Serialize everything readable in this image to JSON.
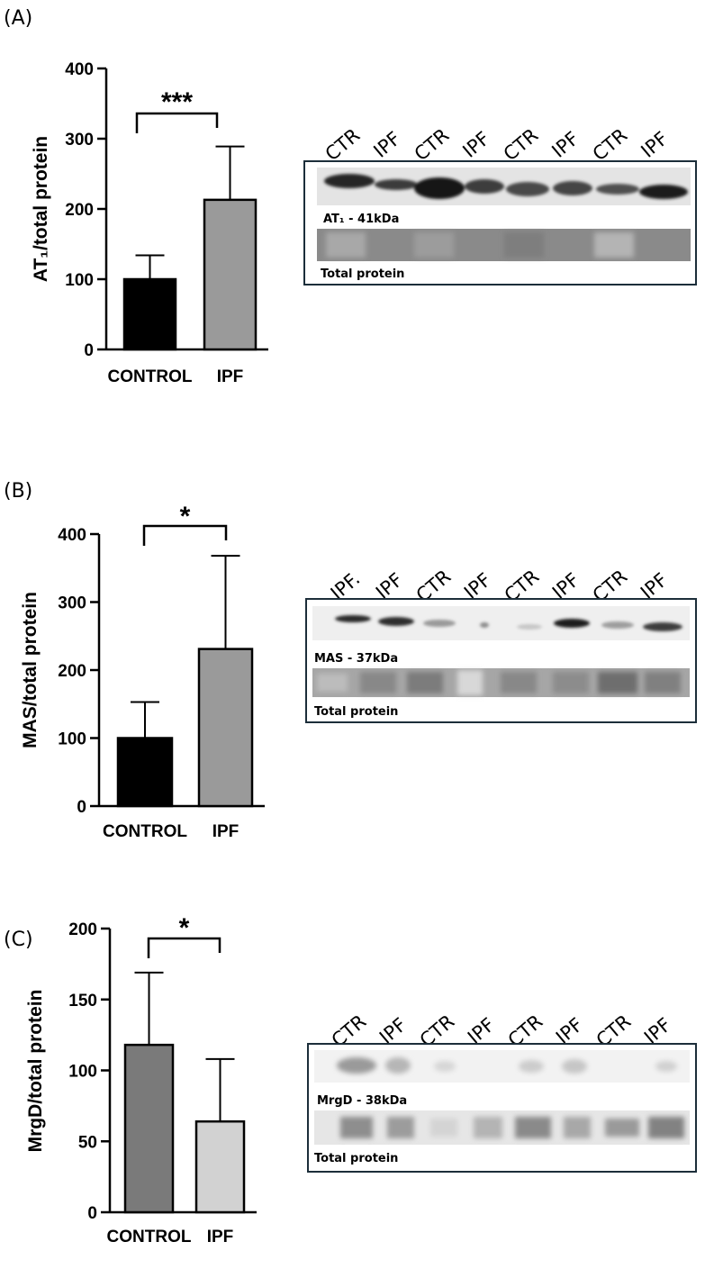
{
  "panels": [
    {
      "letter": "(A)",
      "blot_label": "AT₁ - 41kDa",
      "total_label": "Total protein",
      "lanes": [
        "CTR",
        "IPF",
        "CTR",
        "IPF",
        "CTR",
        "IPF",
        "CTR",
        "IPF"
      ]
    },
    {
      "letter": "(B)",
      "blot_label": "MAS - 37kDa",
      "total_label": "Total protein",
      "lanes": [
        "IPF.",
        "IPF",
        "CTR",
        "IPF",
        "CTR",
        "IPF",
        "CTR",
        "IPF"
      ]
    },
    {
      "letter": "(C)",
      "blot_label": "MrgD - 38kDa",
      "total_label": "Total protein",
      "lanes": [
        "CTR",
        "IPF",
        "CTR",
        "IPF",
        "CTR",
        "IPF",
        "CTR",
        "IPF"
      ]
    }
  ],
  "chart_data": [
    {
      "type": "bar",
      "categories": [
        "CONTROL",
        "IPF"
      ],
      "values": [
        100,
        213
      ],
      "errors": [
        34,
        76
      ],
      "ylabel": "AT₁/total protein",
      "ylim": [
        0,
        400
      ],
      "yticks": [
        "0",
        "100",
        "200",
        "300",
        "400"
      ],
      "significance": "***",
      "colors": [
        "#000000",
        "#9a9a9a"
      ]
    },
    {
      "type": "bar",
      "categories": [
        "CONTROL",
        "IPF"
      ],
      "values": [
        100,
        231
      ],
      "errors": [
        53,
        137
      ],
      "ylabel": "MAS/total protein",
      "ylim": [
        0,
        400
      ],
      "yticks": [
        "0",
        "100",
        "200",
        "300",
        "400"
      ],
      "significance": "*",
      "colors": [
        "#000000",
        "#9a9a9a"
      ]
    },
    {
      "type": "bar",
      "categories": [
        "CONTROL",
        "IPF"
      ],
      "values": [
        118,
        64
      ],
      "errors": [
        51,
        44
      ],
      "ylabel": "MrgD/total protein",
      "ylim": [
        0,
        200
      ],
      "yticks": [
        "0",
        "50",
        "100",
        "150",
        "200"
      ],
      "significance": "*",
      "colors": [
        "#7a7a7a",
        "#d2d2d2"
      ]
    }
  ]
}
